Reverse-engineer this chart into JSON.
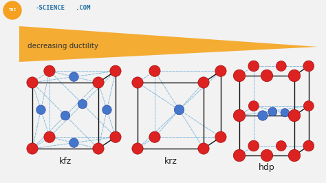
{
  "bg_color": "#f0f0f0",
  "arrow_color": "#f5a623",
  "red_color": "#dd2222",
  "blue_color": "#4477cc",
  "line_solid": "#111111",
  "line_dashed": "#88bbdd",
  "text_color": "#333333",
  "label_color": "#222222",
  "title_text": "decreasing ductility",
  "labels": [
    "kfz",
    "krz",
    "hdp"
  ],
  "logo_circle_color": "#f5a020",
  "logo_science_color": "#1a6aa0",
  "bg_main": "#f2f2f2"
}
